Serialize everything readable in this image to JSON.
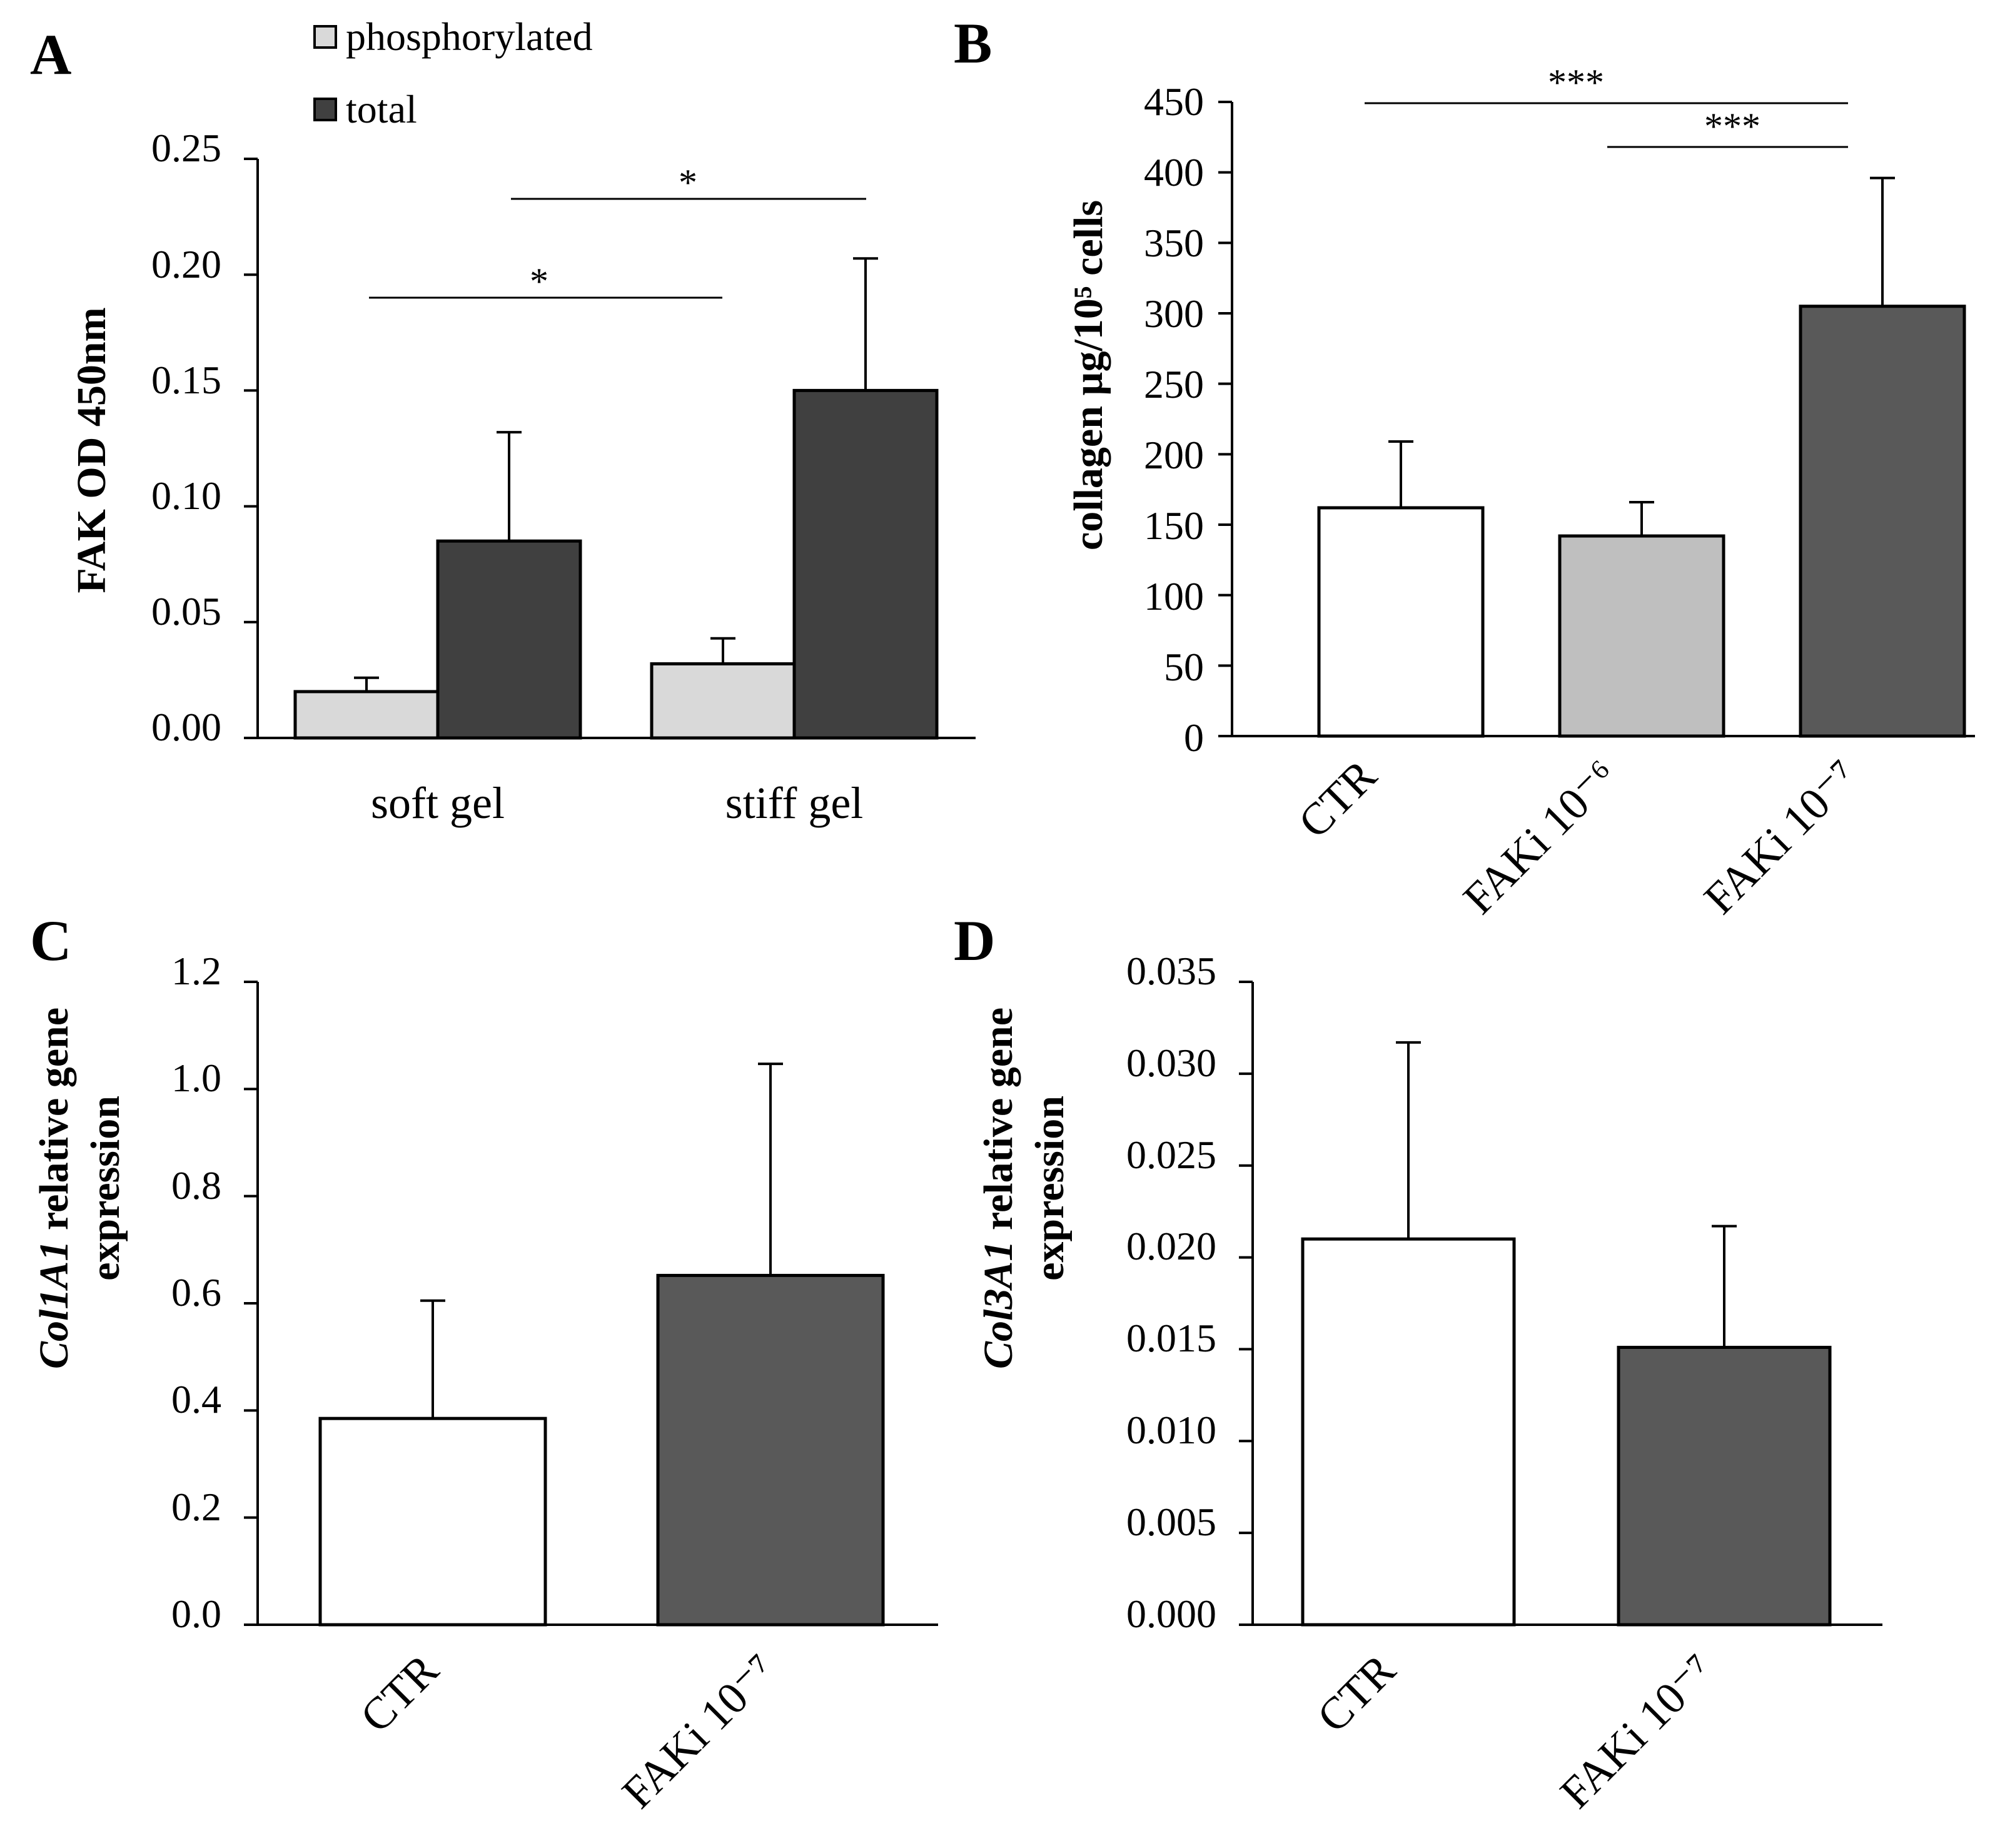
{
  "chart_data": [
    {
      "panel": "A",
      "type": "bar",
      "ylabel": "FAK OD 450nm",
      "ylim": [
        0,
        0.25
      ],
      "yticks": [
        "0.00",
        "0.05",
        "0.10",
        "0.15",
        "0.20",
        "0.25"
      ],
      "categories": [
        "soft gel",
        "stiff gel"
      ],
      "legend": [
        "phosphorylated",
        "total"
      ],
      "series": [
        {
          "name": "phosphorylated",
          "color": "#d9d9d9",
          "values": [
            0.02,
            0.032
          ],
          "errors": [
            0.006,
            0.011
          ]
        },
        {
          "name": "total",
          "color": "#404040",
          "values": [
            0.085,
            0.15
          ],
          "errors": [
            0.047,
            0.057
          ]
        }
      ],
      "annotations": [
        {
          "label": "*",
          "from": "soft gel phosphorylated",
          "to": "stiff gel phosphorylated"
        },
        {
          "label": "*",
          "from": "soft gel total",
          "to": "stiff gel total"
        }
      ]
    },
    {
      "panel": "B",
      "type": "bar",
      "ylabel": "collagen µg/10⁵ cells",
      "ylim": [
        0,
        450
      ],
      "yticks": [
        "0",
        "50",
        "100",
        "150",
        "200",
        "250",
        "300",
        "350",
        "400",
        "450"
      ],
      "categories": [
        "CTR",
        "FAKi 10⁻⁶",
        "FAKi 10⁻⁷"
      ],
      "colors": [
        "#ffffff",
        "#bfbfbf",
        "#595959"
      ],
      "values": [
        162,
        142,
        305
      ],
      "errors": [
        47,
        24,
        91
      ],
      "annotations": [
        {
          "label": "***",
          "from": "CTR",
          "to": "FAKi 10⁻⁷"
        },
        {
          "label": "***",
          "from": "FAKi 10⁻⁶",
          "to": "FAKi 10⁻⁷"
        }
      ]
    },
    {
      "panel": "C",
      "type": "bar",
      "ylabel_italic": "Col1A1",
      "ylabel_rest": " relative gene",
      "ylabel_line2": "expression",
      "ylim": [
        0,
        1.2
      ],
      "yticks": [
        "0.0",
        "0.2",
        "0.4",
        "0.6",
        "0.8",
        "1.0",
        "1.2"
      ],
      "categories": [
        "CTR",
        "FAKi 10⁻⁷"
      ],
      "colors": [
        "#ffffff",
        "#595959"
      ],
      "values": [
        0.385,
        0.652
      ],
      "errors": [
        0.22,
        0.395
      ]
    },
    {
      "panel": "D",
      "type": "bar",
      "ylabel_italic": "Col3A1",
      "ylabel_rest": " relative gene",
      "ylabel_line2": "expression",
      "ylim": [
        0,
        0.035
      ],
      "yticks": [
        "0.000",
        "0.005",
        "0.010",
        "0.015",
        "0.020",
        "0.025",
        "0.030",
        "0.035"
      ],
      "categories": [
        "CTR",
        "FAKi 10⁻⁷"
      ],
      "colors": [
        "#ffffff",
        "#595959"
      ],
      "values": [
        0.021,
        0.0151
      ],
      "errors": [
        0.0107,
        0.0066
      ]
    }
  ]
}
